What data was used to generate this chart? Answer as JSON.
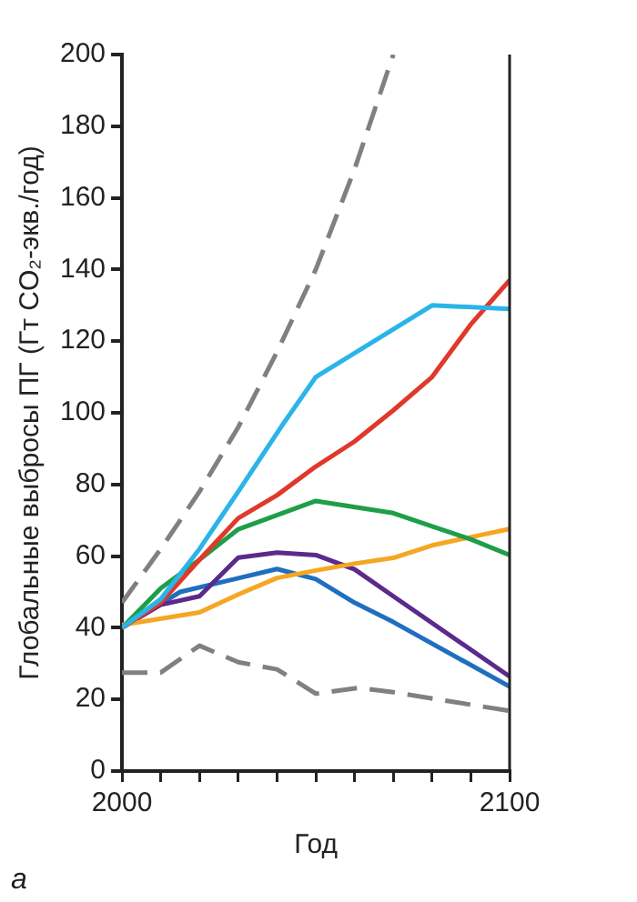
{
  "chart_data": {
    "type": "line",
    "ylabel": "Глобальные выбросы ПГ (Гт CO₂-экв./год)",
    "xlabel": "Год",
    "annotations": [
      "а"
    ],
    "xlim": [
      2000,
      2100
    ],
    "xticks": [
      2000,
      {
        "value": 2010,
        "label": null
      },
      {
        "value": 2020,
        "label": null
      },
      {
        "value": 2030,
        "label": null
      },
      {
        "value": 2040,
        "label": null
      },
      {
        "value": 2050,
        "label": null
      },
      {
        "value": 2060,
        "label": null
      },
      {
        "value": 2070,
        "label": null
      },
      {
        "value": 2080,
        "label": null
      },
      {
        "value": 2090,
        "label": null
      },
      2100
    ],
    "ylim": [
      0,
      200
    ],
    "yticks": [
      0,
      20,
      40,
      60,
      80,
      100,
      120,
      140,
      160,
      180,
      200
    ],
    "grid": false,
    "legend": false,
    "marker": "none",
    "series": [
      {
        "color": "#808080",
        "line_style": "dashed",
        "x": [
          2000,
          2010,
          2020,
          2030,
          2040,
          2050,
          2060,
          2070
        ],
        "values": [
          47,
          62,
          78,
          96,
          117,
          140,
          168,
          200
        ]
      },
      {
        "color": "#808080",
        "line_style": "dashed",
        "x": [
          2000,
          2010,
          2020,
          2030,
          2040,
          2050,
          2061,
          2070,
          2100
        ],
        "values": [
          27.5,
          27.5,
          35,
          30.4,
          28.4,
          21.6,
          23.2,
          22,
          16.8
        ]
      },
      {
        "color": "#29b5e8",
        "line_style": "solid",
        "x": [
          2000,
          2010,
          2020,
          2030,
          2041,
          2050,
          2080,
          2100
        ],
        "values": [
          40,
          48,
          62,
          78,
          96,
          110,
          130,
          129
        ]
      },
      {
        "color": "#e0392b",
        "line_style": "solid",
        "x": [
          2000,
          2010,
          2020,
          2030,
          2040,
          2050,
          2060,
          2070,
          2080,
          2090,
          2100
        ],
        "values": [
          40,
          47,
          59,
          70.6,
          77,
          85,
          92,
          100.7,
          110,
          124.7,
          137
        ]
      },
      {
        "color": "#1e9e48",
        "line_style": "solid",
        "x": [
          2000,
          2010,
          2020,
          2030,
          2050,
          2070,
          2080,
          2090,
          2100
        ],
        "values": [
          40,
          51,
          59,
          67.5,
          75.4,
          72,
          68.3,
          64.7,
          60.3
        ]
      },
      {
        "color": "#f5a623",
        "line_style": "solid",
        "x": [
          2000,
          2020,
          2030,
          2040,
          2050,
          2060,
          2070,
          2080,
          2100
        ],
        "values": [
          40.8,
          44.3,
          49.3,
          53.9,
          56,
          57.9,
          59.5,
          63,
          67.6
        ]
      },
      {
        "color": "#5b2a8c",
        "line_style": "solid",
        "x": [
          2000,
          2010,
          2020,
          2030,
          2040,
          2050,
          2060,
          2070,
          2100
        ],
        "values": [
          40,
          46.4,
          48.8,
          59.6,
          61,
          60.3,
          56.3,
          48.8,
          26.4
        ]
      },
      {
        "color": "#1f6fc0",
        "line_style": "solid",
        "x": [
          2000,
          2015,
          2040,
          2050,
          2060,
          2070,
          2100
        ],
        "values": [
          40,
          50,
          56.4,
          53.6,
          47,
          41.6,
          23.6
        ]
      }
    ]
  }
}
